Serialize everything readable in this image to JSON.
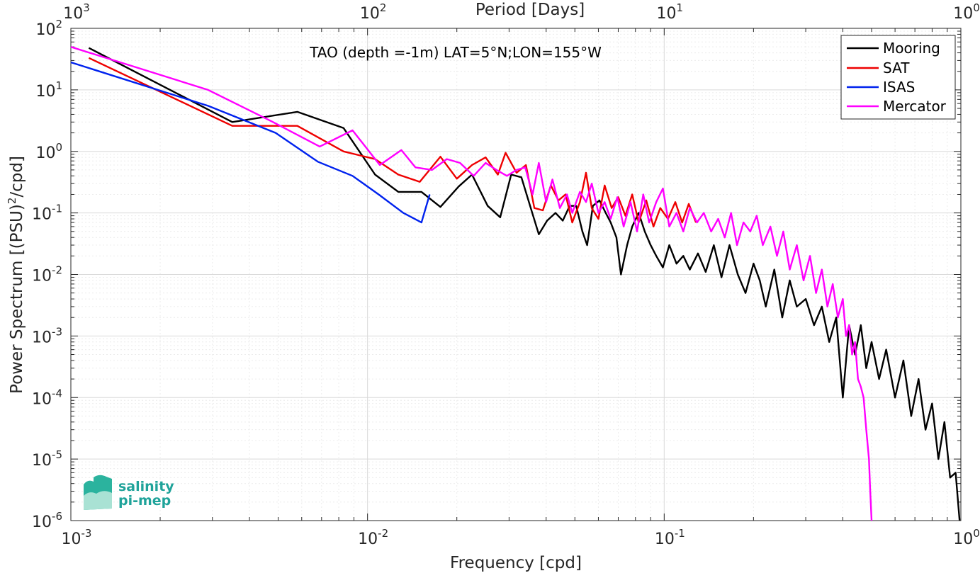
{
  "chart_data": {
    "type": "line",
    "title": "TAO (depth =-1m) LAT=5°N;LON=155°W",
    "xlabel": "Frequency [cpd]",
    "ylabel": "Power Spectrum [(PSU)",
    "ylabel_sup": "2",
    "ylabel_tail": "/cpd]",
    "top_xlabel": "Period [Days]",
    "x_scale": "log",
    "y_scale": "log",
    "xlim": [
      0.001,
      1
    ],
    "ylim": [
      1e-06,
      100
    ],
    "grid": true,
    "legend_position": "top-right",
    "x_ticks": [
      {
        "value": 0.001,
        "base": "10",
        "exp": "-3"
      },
      {
        "value": 0.01,
        "base": "10",
        "exp": "-2"
      },
      {
        "value": 0.1,
        "base": "10",
        "exp": "-1"
      },
      {
        "value": 1,
        "base": "10",
        "exp": "0"
      }
    ],
    "top_ticks": [
      {
        "value": 0.001,
        "base": "10",
        "exp": "3"
      },
      {
        "value": 0.01,
        "base": "10",
        "exp": "2"
      },
      {
        "value": 0.1,
        "base": "10",
        "exp": "1"
      },
      {
        "value": 1,
        "base": "10",
        "exp": "0"
      }
    ],
    "y_ticks": [
      {
        "value": 100,
        "base": "10",
        "exp": "2"
      },
      {
        "value": 10,
        "base": "10",
        "exp": "1"
      },
      {
        "value": 1,
        "base": "10",
        "exp": "0"
      },
      {
        "value": 0.1,
        "base": "10",
        "exp": "-1"
      },
      {
        "value": 0.01,
        "base": "10",
        "exp": "-2"
      },
      {
        "value": 0.001,
        "base": "10",
        "exp": "-3"
      },
      {
        "value": 0.0001,
        "base": "10",
        "exp": "-4"
      },
      {
        "value": 1e-05,
        "base": "10",
        "exp": "-5"
      },
      {
        "value": 1e-06,
        "base": "10",
        "exp": "-6"
      }
    ],
    "series": [
      {
        "name": "Mooring",
        "color": "#000000",
        "points": [
          [
            0.00115,
            48
          ],
          [
            0.0035,
            3.0
          ],
          [
            0.0058,
            4.4
          ],
          [
            0.0083,
            2.4
          ],
          [
            0.0106,
            0.42
          ],
          [
            0.0127,
            0.22
          ],
          [
            0.0152,
            0.22
          ],
          [
            0.0176,
            0.125
          ],
          [
            0.0203,
            0.27
          ],
          [
            0.0225,
            0.42
          ],
          [
            0.0254,
            0.13
          ],
          [
            0.028,
            0.085
          ],
          [
            0.0305,
            0.42
          ],
          [
            0.033,
            0.38
          ],
          [
            0.0355,
            0.12
          ],
          [
            0.0378,
            0.045
          ],
          [
            0.0403,
            0.075
          ],
          [
            0.043,
            0.1
          ],
          [
            0.0455,
            0.075
          ],
          [
            0.048,
            0.13
          ],
          [
            0.0505,
            0.13
          ],
          [
            0.053,
            0.05
          ],
          [
            0.055,
            0.03
          ],
          [
            0.0575,
            0.13
          ],
          [
            0.0605,
            0.16
          ],
          [
            0.0635,
            0.1
          ],
          [
            0.066,
            0.07
          ],
          [
            0.069,
            0.04
          ],
          [
            0.0715,
            0.01
          ],
          [
            0.075,
            0.03
          ],
          [
            0.078,
            0.06
          ],
          [
            0.082,
            0.1
          ],
          [
            0.086,
            0.05
          ],
          [
            0.09,
            0.03
          ],
          [
            0.094,
            0.02
          ],
          [
            0.099,
            0.013
          ],
          [
            0.104,
            0.03
          ],
          [
            0.11,
            0.015
          ],
          [
            0.116,
            0.02
          ],
          [
            0.122,
            0.012
          ],
          [
            0.13,
            0.022
          ],
          [
            0.138,
            0.011
          ],
          [
            0.147,
            0.03
          ],
          [
            0.156,
            0.009
          ],
          [
            0.166,
            0.03
          ],
          [
            0.177,
            0.01
          ],
          [
            0.188,
            0.005
          ],
          [
            0.2,
            0.015
          ],
          [
            0.21,
            0.008
          ],
          [
            0.22,
            0.003
          ],
          [
            0.235,
            0.012
          ],
          [
            0.25,
            0.002
          ],
          [
            0.265,
            0.008
          ],
          [
            0.28,
            0.003
          ],
          [
            0.3,
            0.004
          ],
          [
            0.32,
            0.0015
          ],
          [
            0.34,
            0.003
          ],
          [
            0.36,
            0.0008
          ],
          [
            0.38,
            0.002
          ],
          [
            0.4,
            0.0001
          ],
          [
            0.42,
            0.0015
          ],
          [
            0.44,
            0.0005
          ],
          [
            0.46,
            0.0015
          ],
          [
            0.48,
            0.0003
          ],
          [
            0.5,
            0.0008
          ],
          [
            0.53,
            0.0002
          ],
          [
            0.56,
            0.0006
          ],
          [
            0.6,
            0.0001
          ],
          [
            0.64,
            0.0004
          ],
          [
            0.68,
            5e-05
          ],
          [
            0.72,
            0.0002
          ],
          [
            0.76,
            3e-05
          ],
          [
            0.8,
            8e-05
          ],
          [
            0.84,
            1e-05
          ],
          [
            0.88,
            4e-05
          ],
          [
            0.92,
            5e-06
          ],
          [
            0.96,
            6e-06
          ],
          [
            0.99,
            1e-06
          ]
        ]
      },
      {
        "name": "SAT",
        "color": "#ee0000",
        "points": [
          [
            0.00115,
            33
          ],
          [
            0.0035,
            2.6
          ],
          [
            0.0058,
            2.6
          ],
          [
            0.0083,
            1.0
          ],
          [
            0.0106,
            0.75
          ],
          [
            0.0127,
            0.42
          ],
          [
            0.015,
            0.32
          ],
          [
            0.0176,
            0.82
          ],
          [
            0.02,
            0.36
          ],
          [
            0.0225,
            0.6
          ],
          [
            0.025,
            0.8
          ],
          [
            0.0275,
            0.42
          ],
          [
            0.0292,
            0.95
          ],
          [
            0.0318,
            0.45
          ],
          [
            0.0342,
            0.6
          ],
          [
            0.0365,
            0.12
          ],
          [
            0.039,
            0.11
          ],
          [
            0.0415,
            0.28
          ],
          [
            0.044,
            0.16
          ],
          [
            0.0465,
            0.2
          ],
          [
            0.049,
            0.07
          ],
          [
            0.052,
            0.15
          ],
          [
            0.0545,
            0.45
          ],
          [
            0.057,
            0.12
          ],
          [
            0.06,
            0.08
          ],
          [
            0.063,
            0.28
          ],
          [
            0.0665,
            0.12
          ],
          [
            0.07,
            0.18
          ],
          [
            0.074,
            0.09
          ],
          [
            0.078,
            0.2
          ],
          [
            0.082,
            0.07
          ],
          [
            0.087,
            0.16
          ],
          [
            0.092,
            0.06
          ],
          [
            0.097,
            0.12
          ],
          [
            0.103,
            0.08
          ],
          [
            0.109,
            0.15
          ],
          [
            0.115,
            0.07
          ],
          [
            0.121,
            0.14
          ],
          [
            0.128,
            0.07
          ]
        ]
      },
      {
        "name": "ISAS",
        "color": "#0022ee",
        "points": [
          [
            0.001,
            28
          ],
          [
            0.0029,
            5.5
          ],
          [
            0.0049,
            2.0
          ],
          [
            0.0068,
            0.68
          ],
          [
            0.0089,
            0.4
          ],
          [
            0.0109,
            0.2
          ],
          [
            0.0132,
            0.1
          ],
          [
            0.0152,
            0.07
          ],
          [
            0.0162,
            0.2
          ]
        ]
      },
      {
        "name": "Mercator",
        "color": "#ff00ff",
        "points": [
          [
            0.001,
            50
          ],
          [
            0.0029,
            10
          ],
          [
            0.0048,
            3.0
          ],
          [
            0.0069,
            1.2
          ],
          [
            0.0089,
            2.2
          ],
          [
            0.011,
            0.6
          ],
          [
            0.013,
            1.05
          ],
          [
            0.0145,
            0.55
          ],
          [
            0.0165,
            0.5
          ],
          [
            0.0185,
            0.75
          ],
          [
            0.0205,
            0.65
          ],
          [
            0.0228,
            0.4
          ],
          [
            0.025,
            0.65
          ],
          [
            0.0272,
            0.5
          ],
          [
            0.0295,
            0.4
          ],
          [
            0.0318,
            0.5
          ],
          [
            0.034,
            0.55
          ],
          [
            0.036,
            0.2
          ],
          [
            0.0378,
            0.65
          ],
          [
            0.04,
            0.15
          ],
          [
            0.042,
            0.35
          ],
          [
            0.0445,
            0.12
          ],
          [
            0.047,
            0.2
          ],
          [
            0.049,
            0.1
          ],
          [
            0.052,
            0.22
          ],
          [
            0.0545,
            0.15
          ],
          [
            0.057,
            0.3
          ],
          [
            0.06,
            0.1
          ],
          [
            0.063,
            0.15
          ],
          [
            0.066,
            0.08
          ],
          [
            0.0695,
            0.18
          ],
          [
            0.073,
            0.06
          ],
          [
            0.077,
            0.15
          ],
          [
            0.081,
            0.05
          ],
          [
            0.085,
            0.2
          ],
          [
            0.089,
            0.07
          ],
          [
            0.094,
            0.15
          ],
          [
            0.099,
            0.25
          ],
          [
            0.104,
            0.06
          ],
          [
            0.11,
            0.1
          ],
          [
            0.116,
            0.05
          ],
          [
            0.122,
            0.12
          ],
          [
            0.129,
            0.07
          ],
          [
            0.136,
            0.1
          ],
          [
            0.144,
            0.05
          ],
          [
            0.152,
            0.08
          ],
          [
            0.16,
            0.04
          ],
          [
            0.168,
            0.1
          ],
          [
            0.176,
            0.03
          ],
          [
            0.185,
            0.07
          ],
          [
            0.195,
            0.05
          ],
          [
            0.205,
            0.09
          ],
          [
            0.215,
            0.03
          ],
          [
            0.228,
            0.06
          ],
          [
            0.24,
            0.02
          ],
          [
            0.252,
            0.05
          ],
          [
            0.265,
            0.012
          ],
          [
            0.28,
            0.03
          ],
          [
            0.295,
            0.008
          ],
          [
            0.31,
            0.02
          ],
          [
            0.325,
            0.005
          ],
          [
            0.34,
            0.012
          ],
          [
            0.355,
            0.003
          ],
          [
            0.37,
            0.007
          ],
          [
            0.385,
            0.002
          ],
          [
            0.4,
            0.004
          ],
          [
            0.41,
            0.001
          ],
          [
            0.42,
            0.0015
          ],
          [
            0.43,
            0.0005
          ],
          [
            0.44,
            0.0008
          ],
          [
            0.45,
            0.0002
          ],
          [
            0.46,
            0.00015
          ],
          [
            0.47,
            0.0001
          ],
          [
            0.48,
            3e-05
          ],
          [
            0.49,
            1e-05
          ],
          [
            0.495,
            3e-06
          ],
          [
            0.5,
            1e-06
          ]
        ]
      }
    ]
  },
  "logo": {
    "line1": "salinity",
    "line2": "pi-mep"
  }
}
